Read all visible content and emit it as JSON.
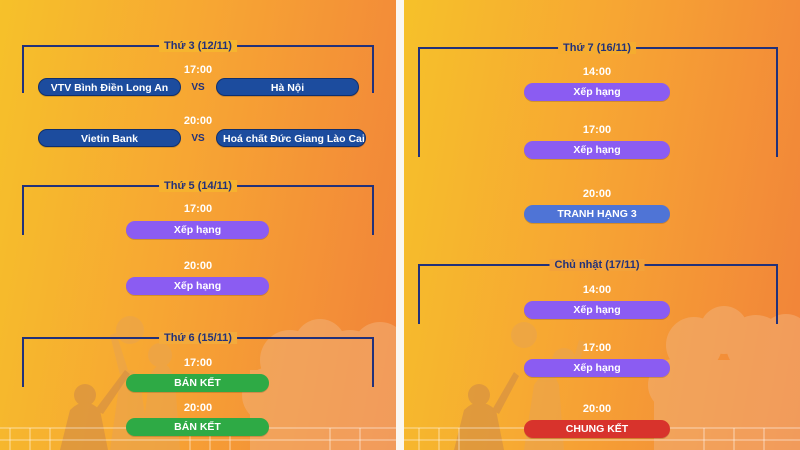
{
  "left": {
    "days": [
      {
        "label": "Thứ 3 (12/11)",
        "matches": [
          {
            "time": "17:00",
            "home": "VTV Bình Điền Long An",
            "vs": "VS",
            "away": "Hà Nội"
          },
          {
            "time": "20:00",
            "home": "Vietin Bank",
            "vs": "VS",
            "away": "Hoá chất Đức Giang Lào Cai"
          }
        ]
      },
      {
        "label": "Thứ 5 (14/11)",
        "matches": [
          {
            "time": "17:00",
            "label": "Xếp hạng"
          },
          {
            "time": "20:00",
            "label": "Xếp hạng"
          }
        ]
      },
      {
        "label": "Thứ 6 (15/11)",
        "matches": [
          {
            "time": "17:00",
            "label": "BÁN KẾT"
          },
          {
            "time": "20:00",
            "label": "BÁN KẾT"
          }
        ]
      }
    ]
  },
  "right": {
    "days": [
      {
        "label": "Thứ 7 (16/11)",
        "matches": [
          {
            "time": "14:00",
            "label": "Xếp hạng"
          },
          {
            "time": "17:00",
            "label": "Xếp hạng"
          },
          {
            "time": "20:00",
            "label": "TRANH HẠNG 3"
          }
        ]
      },
      {
        "label": "Chủ nhật (17/11)",
        "matches": [
          {
            "time": "14:00",
            "label": "Xếp hạng"
          },
          {
            "time": "17:00",
            "label": "Xếp hạng"
          },
          {
            "time": "20:00",
            "label": "CHUNG KẾT"
          }
        ]
      }
    ]
  },
  "colors": {
    "bracket": "#22317a",
    "team_pill": "#1c4c9e",
    "ranking_pill": "#8b5cf2",
    "third_place_pill": "#4f74d6",
    "semifinal_pill": "#2eaa45",
    "final_pill": "#d8332c"
  }
}
